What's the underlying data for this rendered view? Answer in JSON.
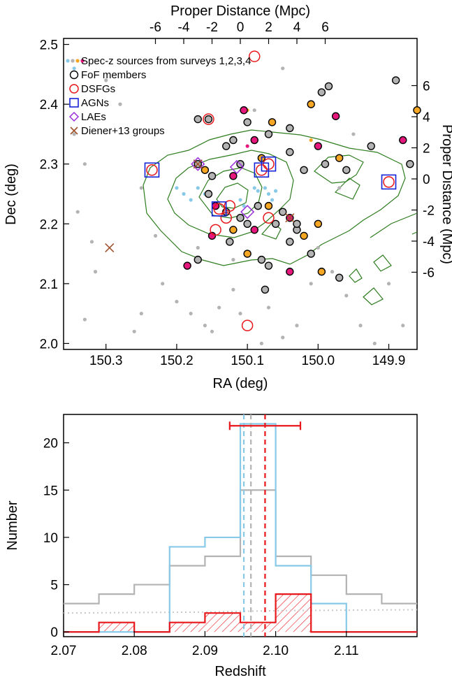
{
  "colors": {
    "grey": "#b3b3b3",
    "blue": "#88c9e8",
    "red": "#e8171b",
    "orange": "#f5a623",
    "magenta": "#e6177c",
    "navy": "#1523d6",
    "purple": "#9b30d9",
    "brown": "#a0522d",
    "green": "#2e7d1f"
  },
  "chart_data": [
    {
      "type": "scatter",
      "xlabel": "RA (deg)",
      "ylabel": "Dec (deg)",
      "top_label": "Proper Distance (Mpc)",
      "right_label": "Proper Distance (Mpc)",
      "xlim": [
        150.36,
        149.86
      ],
      "ylim": [
        1.99,
        2.51
      ],
      "x_ticks": [
        "150.3",
        "150.2",
        "150.1",
        "150.0",
        "149.9"
      ],
      "y_ticks": [
        "2.0",
        "2.1",
        "2.2",
        "2.3",
        "2.4",
        "2.5"
      ],
      "top_ticks": [
        "-6",
        "-4",
        "-2",
        "0",
        "2",
        "4",
        "6"
      ],
      "right_ticks": [
        "-6",
        "-4",
        "-2",
        "0",
        "2",
        "4",
        "6"
      ],
      "legend": [
        {
          "name": "Spec-z sources from surveys 1,2,3,4",
          "marker": "dots"
        },
        {
          "name": "FoF members",
          "marker": "circle-black"
        },
        {
          "name": "DSFGs",
          "marker": "circle-red"
        },
        {
          "name": "AGNs",
          "marker": "square-blue"
        },
        {
          "name": "LAEs",
          "marker": "diamond-purple"
        },
        {
          "name": "Diener+13 groups",
          "marker": "x-brown"
        }
      ],
      "series": {
        "grey": [
          [
            150.345,
            2.35
          ],
          [
            150.34,
            2.22
          ],
          [
            150.33,
            2.3
          ],
          [
            150.32,
            2.17
          ],
          [
            150.315,
            2.12
          ],
          [
            150.33,
            2.04
          ],
          [
            150.25,
            2.05
          ],
          [
            150.26,
            2.02
          ],
          [
            150.22,
            2.1
          ],
          [
            150.2,
            2.07
          ],
          [
            150.18,
            2.05
          ],
          [
            150.16,
            2.03
          ],
          [
            150.15,
            2.02
          ],
          [
            150.14,
            2.06
          ],
          [
            150.12,
            2.09
          ],
          [
            150.11,
            2.05
          ],
          [
            150.08,
            2.0
          ],
          [
            150.07,
            2.06
          ],
          [
            150.05,
            2.01
          ],
          [
            150.03,
            2.03
          ],
          [
            150.01,
            2.1
          ],
          [
            149.98,
            2.12
          ],
          [
            149.96,
            2.08
          ],
          [
            149.94,
            2.03
          ],
          [
            149.92,
            2.0
          ],
          [
            149.9,
            2.1
          ],
          [
            149.88,
            2.03
          ],
          [
            150.28,
            2.4
          ],
          [
            150.25,
            2.26
          ],
          [
            150.23,
            2.18
          ],
          [
            150.17,
            2.16
          ],
          [
            150.12,
            2.14
          ],
          [
            150.0,
            2.16
          ],
          [
            149.97,
            2.26
          ],
          [
            149.95,
            2.35
          ],
          [
            150.05,
            2.46
          ],
          [
            150.09,
            2.39
          ],
          [
            150.3,
            2.44
          ]
        ],
        "blue": [
          [
            150.345,
            2.46
          ],
          [
            150.2,
            2.26
          ],
          [
            150.19,
            2.25
          ],
          [
            150.18,
            2.24
          ],
          [
            150.17,
            2.26
          ],
          [
            150.16,
            2.25
          ],
          [
            150.09,
            2.26
          ],
          [
            150.085,
            2.255
          ],
          [
            150.075,
            2.26
          ],
          [
            150.07,
            2.25
          ],
          [
            150.06,
            2.255
          ],
          [
            150.065,
            2.24
          ],
          [
            150.11,
            2.24
          ],
          [
            150.105,
            2.23
          ]
        ],
        "orange": [
          [
            150.1,
            2.39
          ],
          [
            150.01,
            2.34
          ]
        ],
        "magenta": [
          [
            150.1,
            2.33
          ]
        ],
        "fof": [
          [
            150.17,
            2.375
          ],
          [
            150.155,
            2.375
          ],
          [
            150.105,
            2.39
          ],
          [
            150.1,
            2.37
          ],
          [
            150.065,
            2.37
          ],
          [
            150.04,
            2.36
          ],
          [
            150.12,
            2.34
          ],
          [
            150.09,
            2.34
          ],
          [
            150.07,
            2.35
          ],
          [
            150.01,
            2.4
          ],
          [
            149.995,
            2.42
          ],
          [
            149.985,
            2.43
          ],
          [
            149.975,
            2.38
          ],
          [
            150.17,
            2.3
          ],
          [
            150.16,
            2.29
          ],
          [
            150.15,
            2.28
          ],
          [
            150.13,
            2.33
          ],
          [
            150.12,
            2.28
          ],
          [
            150.11,
            2.3
          ],
          [
            150.08,
            2.31
          ],
          [
            150.04,
            2.32
          ],
          [
            150.02,
            2.29
          ],
          [
            150.0,
            2.33
          ],
          [
            149.99,
            2.3
          ],
          [
            149.97,
            2.31
          ],
          [
            149.96,
            2.29
          ],
          [
            149.89,
            2.44
          ],
          [
            149.88,
            2.34
          ],
          [
            149.87,
            2.3
          ],
          [
            149.86,
            2.39
          ],
          [
            149.925,
            2.33
          ],
          [
            150.155,
            2.25
          ],
          [
            150.145,
            2.23
          ],
          [
            150.13,
            2.22
          ],
          [
            150.12,
            2.19
          ],
          [
            150.11,
            2.21
          ],
          [
            150.1,
            2.2
          ],
          [
            150.09,
            2.19
          ],
          [
            150.085,
            2.23
          ],
          [
            150.07,
            2.23
          ],
          [
            150.06,
            2.2
          ],
          [
            150.05,
            2.22
          ],
          [
            150.04,
            2.21
          ],
          [
            150.03,
            2.19
          ],
          [
            150.02,
            2.18
          ],
          [
            150.04,
            2.17
          ],
          [
            150.03,
            2.2
          ],
          [
            150.15,
            2.18
          ],
          [
            150.125,
            2.17
          ],
          [
            150.1,
            2.15
          ],
          [
            150.08,
            2.14
          ],
          [
            150.07,
            2.13
          ],
          [
            150.04,
            2.12
          ],
          [
            150.01,
            2.15
          ],
          [
            149.995,
            2.12
          ],
          [
            149.97,
            2.11
          ],
          [
            150.17,
            2.14
          ],
          [
            150.185,
            2.13
          ],
          [
            150.075,
            2.09
          ],
          [
            150.0,
            2.2
          ]
        ],
        "dsfg": [
          [
            150.09,
            2.48
          ],
          [
            150.235,
            2.29
          ],
          [
            150.155,
            2.375
          ],
          [
            150.14,
            2.225
          ],
          [
            150.125,
            2.23
          ],
          [
            150.13,
            2.21
          ],
          [
            150.145,
            2.19
          ],
          [
            150.07,
            2.21
          ],
          [
            150.08,
            2.29
          ],
          [
            150.07,
            2.3
          ],
          [
            149.9,
            2.27
          ],
          [
            150.1,
            2.03
          ]
        ],
        "agn": [
          [
            150.235,
            2.29
          ],
          [
            150.14,
            2.225
          ],
          [
            150.08,
            2.29
          ],
          [
            150.07,
            2.3
          ],
          [
            149.9,
            2.27
          ]
        ],
        "lae": [
          [
            150.17,
            2.3
          ],
          [
            150.115,
            2.295
          ],
          [
            150.1,
            2.22
          ]
        ],
        "diener": [
          [
            150.17,
            2.3
          ],
          [
            150.295,
            2.16
          ],
          [
            150.04,
            2.21
          ]
        ]
      }
    },
    {
      "type": "bar",
      "xlabel": "Redshift",
      "ylabel": "Number",
      "xlim": [
        2.07,
        2.12
      ],
      "ylim": [
        -0.5,
        23
      ],
      "x_ticks": [
        "2.07",
        "2.08",
        "2.09",
        "2.10",
        "2.11"
      ],
      "y_ticks": [
        "0",
        "5",
        "10",
        "15",
        "20"
      ],
      "bin_edges": [
        2.07,
        2.075,
        2.08,
        2.085,
        2.09,
        2.095,
        2.1,
        2.105,
        2.11,
        2.115,
        2.12
      ],
      "series": [
        {
          "values": [
            3,
            4,
            5,
            7,
            8,
            15,
            8,
            6,
            4,
            3
          ],
          "color": "grey"
        },
        {
          "values": [
            0,
            0,
            0,
            9,
            10,
            22,
            7,
            3,
            0,
            0
          ],
          "color": "blue"
        },
        {
          "values": [
            0,
            1,
            0,
            1,
            2,
            1,
            4,
            0,
            0,
            0
          ],
          "color": "red"
        }
      ],
      "mean_lines": {
        "grey": 2.0965,
        "blue": 2.0955,
        "red": 2.0985
      },
      "error_bar": {
        "center": 2.0985,
        "low": 2.0935,
        "high": 2.1035,
        "y": 21.8
      },
      "dotted_curve": [
        [
          2.07,
          2.0
        ],
        [
          2.09,
          2.1
        ],
        [
          2.1,
          2.25
        ],
        [
          2.12,
          2.35
        ]
      ]
    }
  ]
}
